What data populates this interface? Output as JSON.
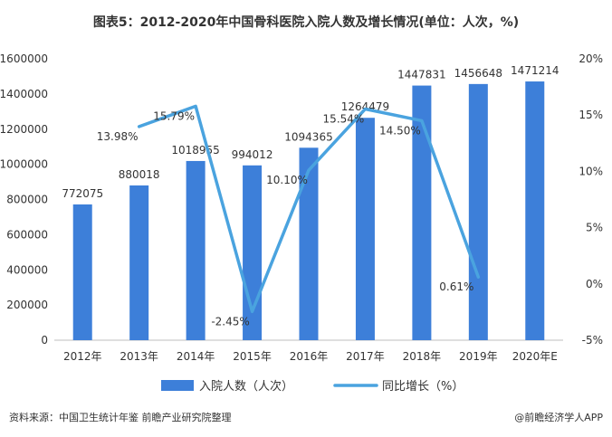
{
  "title": "图表5：2012-2020年中国骨科医院入院人数及增长情况(单位：人次，%)",
  "chart_data": {
    "type": "bar",
    "categories": [
      "2012年",
      "2013年",
      "2014年",
      "2015年",
      "2016年",
      "2017年",
      "2018年",
      "2019年",
      "2020年E"
    ],
    "series": [
      {
        "name": "入院人数（人次）",
        "type": "bar",
        "axis": "left",
        "values": [
          772075,
          880018,
          1018955,
          994012,
          1094365,
          1264479,
          1447831,
          1456648,
          1471214
        ],
        "labels": [
          "772075",
          "880018",
          "1018955",
          "994012",
          "1094365",
          "1264479",
          "1447831",
          "1456648",
          "1471214"
        ]
      },
      {
        "name": "同比增长（%）",
        "type": "line",
        "axis": "right",
        "values": [
          null,
          13.98,
          15.79,
          -2.45,
          10.1,
          15.54,
          14.5,
          0.61,
          null
        ],
        "labels": [
          null,
          "13.98%",
          "15.79%",
          "-2.45%",
          "10.10%",
          "15.54%",
          "14.50%",
          "0.61%",
          null
        ]
      }
    ],
    "y_left": {
      "min": 0,
      "max": 1600000,
      "ticks": [
        "0",
        "200000",
        "400000",
        "600000",
        "800000",
        "1000000",
        "1200000",
        "1400000",
        "1600000"
      ]
    },
    "y_right": {
      "min": -5,
      "max": 20,
      "ticks": [
        "-5%",
        "0%",
        "5%",
        "10%",
        "15%",
        "20%"
      ]
    },
    "legend_position": "bottom",
    "grid": false,
    "colors": {
      "bar": "#3d7fd9",
      "line": "#4aa3df"
    }
  },
  "footer": {
    "source": "资料来源：中国卫生统计年鉴 前瞻产业研究院整理",
    "brand": "@前瞻经济学人APP"
  }
}
